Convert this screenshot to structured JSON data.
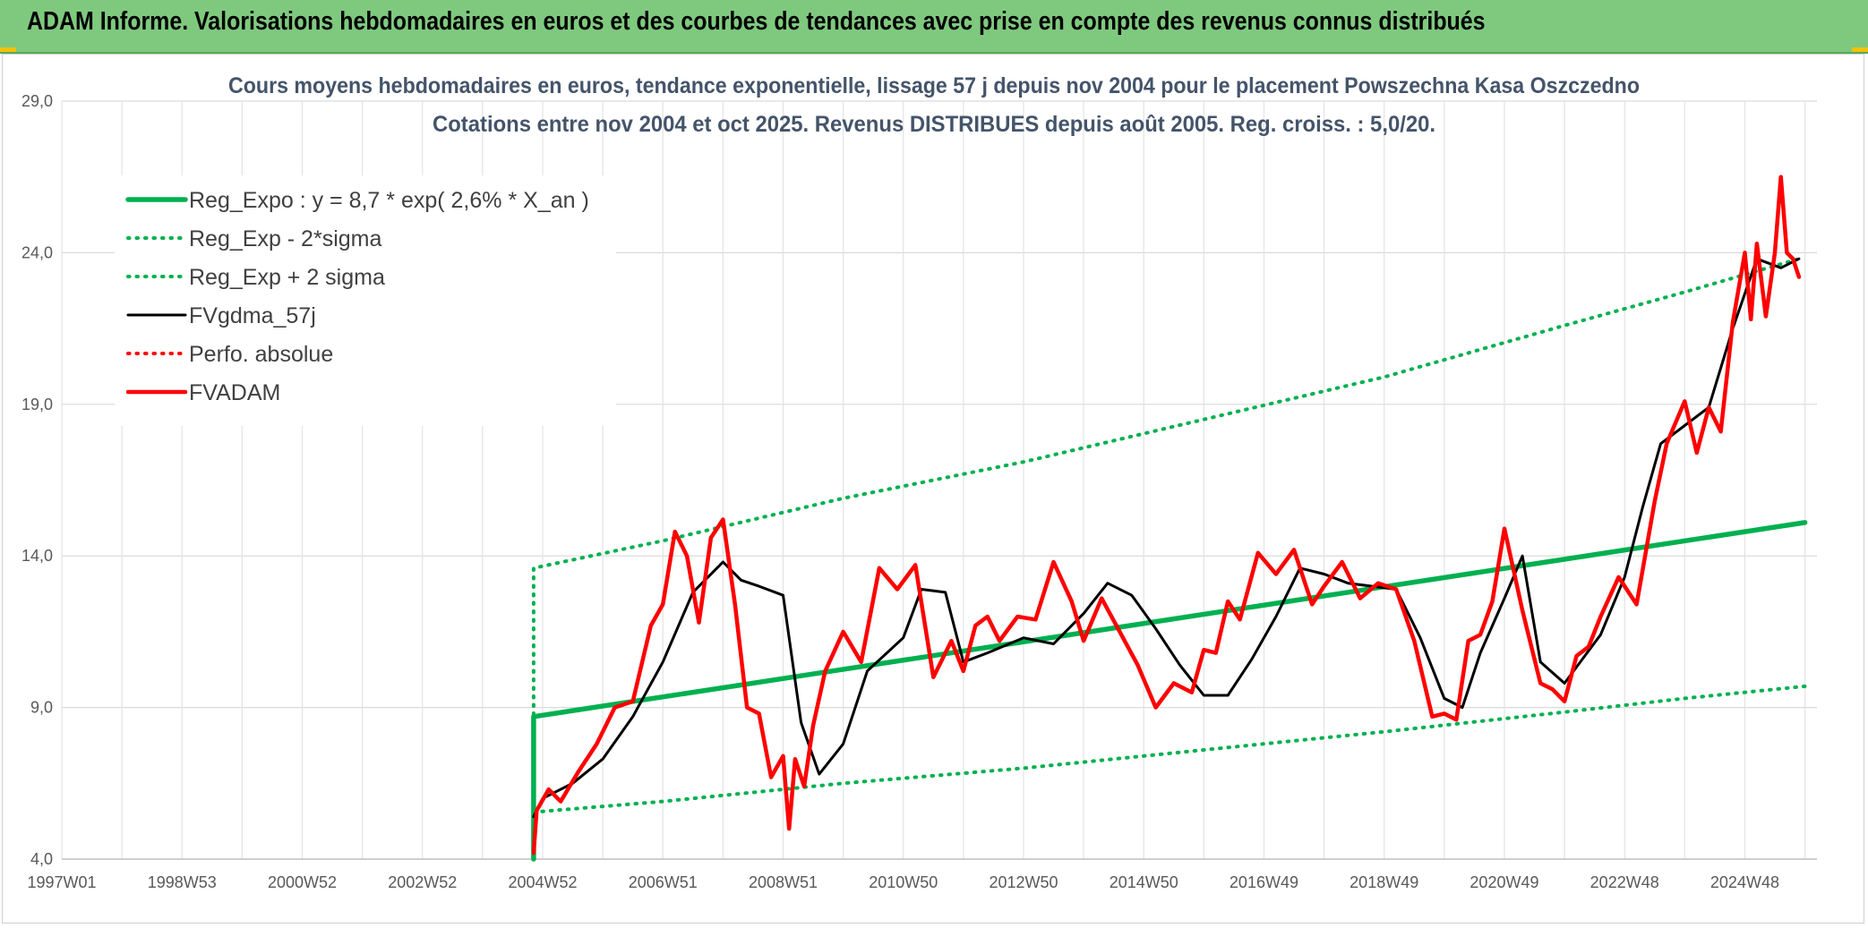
{
  "header": {
    "title": "ADAM Informe. Valorisations hebdomadaires en euros et des courbes de tendances avec prise en compte des revenus connus distribués",
    "background_color": "#7fc97f"
  },
  "chart_data": {
    "type": "line",
    "title_line1": "Cours moyens hebdomadaires en euros, tendance exponentielle, lissage 57 j depuis nov 2004 pour le placement Powszechna Kasa Oszczedno",
    "title_line2": "Cotations entre nov 2004 et oct 2025. Revenus DISTRIBUES depuis août 2005. Reg. croiss. : 5,0/20.",
    "xlabel": "",
    "ylabel": "",
    "xlim": [
      1997.0,
      2026.2
    ],
    "ylim": [
      4.0,
      29.0
    ],
    "y_ticks": [
      "4,0",
      "9,0",
      "14,0",
      "19,0",
      "24,0",
      "29,0"
    ],
    "y_tick_values": [
      4,
      9,
      14,
      19,
      24,
      29
    ],
    "x_ticks": [
      "1997W01",
      "1998W53",
      "2000W52",
      "2002W52",
      "2004W52",
      "2006W51",
      "2008W51",
      "2010W50",
      "2012W50",
      "2014W50",
      "2016W49",
      "2018W49",
      "2020W49",
      "2022W48",
      "2024W48"
    ],
    "x_tick_values": [
      1997.0,
      1999.0,
      2001.0,
      2003.0,
      2005.0,
      2007.0,
      2009.0,
      2011.0,
      2013.0,
      2015.0,
      2017.0,
      2019.0,
      2021.0,
      2023.0,
      2025.0
    ],
    "grid": true,
    "legend_position": "top-left",
    "series": [
      {
        "name": "Reg_Expo : y = 8,7 * exp( 2,6% *  X_an )",
        "style": "solid-thick",
        "color": "#00b050",
        "x": [
          2004.85,
          2004.85,
          2026.0
        ],
        "y": [
          4.0,
          8.7,
          15.1
        ]
      },
      {
        "name": "Reg_Exp - 2*sigma",
        "style": "dotted",
        "color": "#00b050",
        "x": [
          2004.85,
          2007,
          2010,
          2013,
          2016,
          2019,
          2022,
          2024,
          2026.0
        ],
        "y": [
          5.55,
          5.9,
          6.5,
          7.0,
          7.6,
          8.2,
          8.85,
          9.3,
          9.7
        ]
      },
      {
        "name": "Reg_Exp + 2 sigma",
        "style": "dotted",
        "color": "#00b050",
        "x": [
          2004.85,
          2004.85,
          2007,
          2010,
          2013,
          2016,
          2019,
          2022,
          2024,
          2025.9
        ],
        "y": [
          4.0,
          13.6,
          14.5,
          15.9,
          17.1,
          18.5,
          19.9,
          21.6,
          22.7,
          23.8
        ]
      },
      {
        "name": "FVgdma_57j",
        "style": "solid",
        "color": "#000000",
        "x": [
          2004.85,
          2005.0,
          2005.5,
          2006.0,
          2006.5,
          2007.0,
          2007.5,
          2008.0,
          2008.3,
          2008.6,
          2009.0,
          2009.3,
          2009.6,
          2010.0,
          2010.4,
          2011.0,
          2011.3,
          2011.7,
          2012.0,
          2012.4,
          2013.0,
          2013.5,
          2014.0,
          2014.4,
          2014.8,
          2015.2,
          2015.6,
          2016.0,
          2016.4,
          2016.8,
          2017.2,
          2017.6,
          2018.0,
          2018.4,
          2018.8,
          2019.2,
          2019.6,
          2020.0,
          2020.3,
          2020.6,
          2021.0,
          2021.3,
          2021.6,
          2022.0,
          2022.3,
          2022.6,
          2023.0,
          2023.3,
          2023.6,
          2024.0,
          2024.4,
          2024.8,
          2025.2,
          2025.6,
          2025.9
        ],
        "y": [
          5.4,
          6.0,
          6.5,
          7.3,
          8.7,
          10.5,
          12.8,
          13.8,
          13.2,
          13.0,
          12.7,
          8.5,
          6.8,
          7.8,
          10.2,
          11.3,
          12.9,
          12.8,
          10.5,
          10.8,
          11.3,
          11.1,
          12.1,
          13.1,
          12.7,
          11.6,
          10.4,
          9.4,
          9.4,
          10.6,
          12.0,
          13.6,
          13.4,
          13.1,
          13.0,
          12.9,
          11.3,
          9.3,
          9.0,
          10.8,
          12.6,
          14.0,
          10.5,
          9.8,
          10.6,
          11.4,
          13.3,
          15.6,
          17.7,
          18.3,
          18.9,
          21.5,
          23.8,
          23.5,
          23.8
        ]
      },
      {
        "name": "Perfo. absolue",
        "style": "dotted",
        "color": "#ff0000",
        "x": [],
        "y": []
      },
      {
        "name": "FVADAM",
        "style": "solid-thick",
        "color": "#ff0000",
        "x": [
          2004.85,
          2004.9,
          2005.1,
          2005.3,
          2005.6,
          2005.9,
          2006.2,
          2006.5,
          2006.8,
          2007.0,
          2007.2,
          2007.4,
          2007.6,
          2007.8,
          2008.0,
          2008.2,
          2008.4,
          2008.6,
          2008.8,
          2009.0,
          2009.1,
          2009.2,
          2009.35,
          2009.5,
          2009.7,
          2010.0,
          2010.3,
          2010.6,
          2010.9,
          2011.2,
          2011.5,
          2011.8,
          2012.0,
          2012.2,
          2012.4,
          2012.6,
          2012.9,
          2013.2,
          2013.5,
          2013.8,
          2014.0,
          2014.3,
          2014.6,
          2014.9,
          2015.2,
          2015.5,
          2015.8,
          2016.0,
          2016.2,
          2016.4,
          2016.6,
          2016.9,
          2017.2,
          2017.5,
          2017.8,
          2018.0,
          2018.3,
          2018.6,
          2018.9,
          2019.2,
          2019.5,
          2019.8,
          2020.0,
          2020.2,
          2020.4,
          2020.6,
          2020.8,
          2021.0,
          2021.3,
          2021.6,
          2021.8,
          2022.0,
          2022.2,
          2022.4,
          2022.6,
          2022.9,
          2023.2,
          2023.5,
          2023.7,
          2024.0,
          2024.2,
          2024.4,
          2024.6,
          2024.8,
          2025.0,
          2025.1,
          2025.2,
          2025.35,
          2025.5,
          2025.6,
          2025.7,
          2025.8,
          2025.9
        ],
        "y": [
          4.2,
          5.6,
          6.3,
          5.9,
          6.9,
          7.8,
          9.0,
          9.2,
          11.7,
          12.4,
          14.8,
          14.0,
          11.8,
          14.6,
          15.2,
          12.4,
          9.0,
          8.8,
          6.7,
          7.4,
          5.0,
          7.3,
          6.4,
          8.4,
          10.2,
          11.5,
          10.5,
          13.6,
          12.9,
          13.7,
          10.0,
          11.2,
          10.2,
          11.7,
          12.0,
          11.2,
          12.0,
          11.9,
          13.8,
          12.5,
          11.2,
          12.6,
          11.5,
          10.4,
          9.0,
          9.8,
          9.5,
          10.9,
          10.8,
          12.5,
          11.9,
          14.1,
          13.4,
          14.2,
          12.4,
          13.0,
          13.8,
          12.6,
          13.1,
          12.9,
          11.2,
          8.7,
          8.8,
          8.6,
          11.2,
          11.4,
          12.5,
          14.9,
          12.2,
          9.8,
          9.6,
          9.2,
          10.7,
          11.0,
          12.0,
          13.3,
          12.4,
          15.8,
          17.7,
          19.1,
          17.4,
          18.9,
          18.1,
          21.7,
          24.0,
          21.8,
          24.3,
          21.9,
          24.0,
          26.5,
          24.0,
          23.8,
          23.2
        ]
      }
    ]
  }
}
